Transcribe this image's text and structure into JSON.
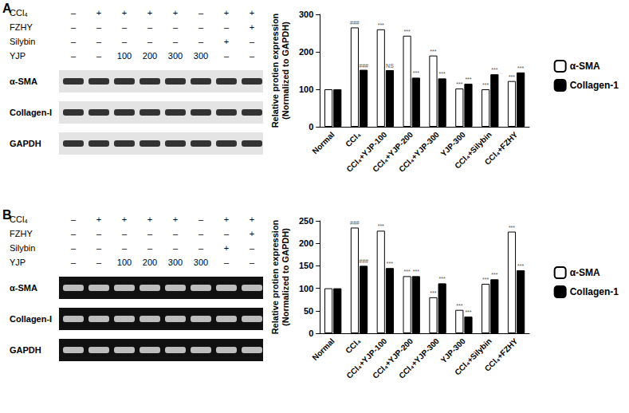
{
  "blots": [
    {
      "panel": "A",
      "rows": [
        {
          "label": "CCl₄",
          "marks": [
            "–",
            "+",
            "+",
            "+",
            "+",
            "–",
            "+",
            "+"
          ]
        },
        {
          "label": "FZHY",
          "marks": [
            "–",
            "–",
            "–",
            "–",
            "–",
            "–",
            "–",
            "+"
          ]
        },
        {
          "label": "Silybin",
          "marks": [
            "–",
            "–",
            "–",
            "–",
            "–",
            "–",
            "+",
            "–"
          ]
        },
        {
          "label": "YJP",
          "marks": [
            "–",
            "–",
            "100",
            "200",
            "300",
            "300",
            "–",
            "–"
          ]
        }
      ],
      "bands": [
        "α-SMA",
        "Collagen-I",
        "GAPDH"
      ]
    },
    {
      "panel": "B",
      "rows": [
        {
          "label": "CCl₄",
          "marks": [
            "–",
            "+",
            "+",
            "+",
            "+",
            "–",
            "+",
            "+"
          ]
        },
        {
          "label": "FZHY",
          "marks": [
            "–",
            "–",
            "–",
            "–",
            "–",
            "–",
            "–",
            "+"
          ]
        },
        {
          "label": "Silybin",
          "marks": [
            "–",
            "–",
            "–",
            "–",
            "–",
            "–",
            "+",
            "–"
          ]
        },
        {
          "label": "YJP",
          "marks": [
            "–",
            "–",
            "100",
            "200",
            "300",
            "300",
            "–",
            "–"
          ]
        }
      ],
      "bands": [
        "α-SMA",
        "Collagen-I",
        "GAPDH"
      ]
    }
  ],
  "chart_data": [
    {
      "type": "bar",
      "ylabel": "Relative protien expression\n(Normalized to GAPDH)",
      "categories": [
        "Normal",
        "CCl₄",
        "CCl₄+YJP-100",
        "CCl₄+YJP-200",
        "CCl₄+YJP-300",
        "YJP-300",
        "CCl₄+Silybin",
        "CCl₄+FZHY"
      ],
      "series": [
        {
          "name": "α-SMA",
          "color": "#ffffff",
          "values": [
            100,
            265,
            260,
            243,
            190,
            102,
            100,
            122
          ],
          "significance": [
            null,
            "###",
            "***",
            "***",
            "***",
            "***",
            "***",
            "***"
          ]
        },
        {
          "name": "Collagen-1",
          "color": "#000000",
          "values": [
            100,
            152,
            151,
            131,
            129,
            115,
            140,
            145
          ],
          "significance": [
            null,
            "###",
            "NS",
            "***",
            "***",
            "***",
            "***",
            "***"
          ]
        }
      ],
      "ylim": [
        0,
        300
      ],
      "yticks": [
        0,
        100,
        200,
        300
      ],
      "grid": false,
      "legend": "right"
    },
    {
      "type": "bar",
      "ylabel": "Relative protien expression\n(Normalized to GAPDH)",
      "categories": [
        "Normal",
        "CCl₄",
        "CCl₄+YJP-100",
        "CCl₄+YJP-200",
        "CCl₄+YJP-300",
        "YJP-300",
        "CCl₄+Silybin",
        "CCl₄+FZHY"
      ],
      "series": [
        {
          "name": "α-SMA",
          "color": "#ffffff",
          "values": [
            100,
            235,
            228,
            127,
            80,
            52,
            110,
            226
          ],
          "significance": [
            null,
            "###",
            "***",
            "***",
            "***",
            "***",
            "***",
            "***"
          ]
        },
        {
          "name": "Collagen-1",
          "color": "#000000",
          "values": [
            100,
            150,
            145,
            127,
            111,
            37,
            120,
            140
          ],
          "significance": [
            null,
            "###",
            "***",
            "***",
            "***",
            "***",
            "***",
            "***"
          ]
        }
      ],
      "ylim": [
        0,
        250
      ],
      "yticks": [
        0,
        50,
        100,
        150,
        200,
        250
      ],
      "grid": false,
      "legend": "right"
    }
  ]
}
